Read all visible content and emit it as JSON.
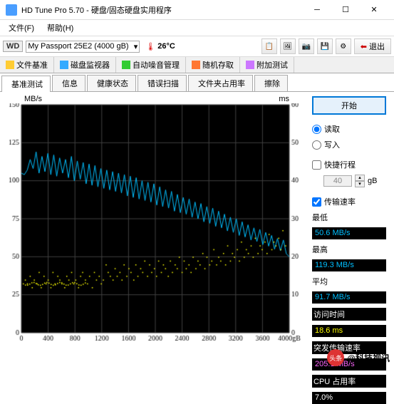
{
  "window": {
    "title": "HD Tune Pro 5.70 - 硬盘/固态硬盘实用程序"
  },
  "menu": {
    "file": "文件(F)",
    "help": "帮助(H)"
  },
  "toolbar": {
    "drive_label": "WD",
    "drive_name": "My Passport 25E2 (4000 gB)",
    "temp": "26°C",
    "exit": "退出"
  },
  "tabs": {
    "r1": [
      "文件基准",
      "磁盘监视器",
      "自动噪音管理",
      "随机存取",
      "附加测试"
    ],
    "r2": [
      "基准测试",
      "信息",
      "健康状态",
      "错误扫描",
      "文件夹占用率",
      "擦除"
    ]
  },
  "chart": {
    "y_label_left": "MB/s",
    "y_label_right": "ms",
    "y_left": [
      150,
      125,
      100,
      75,
      50,
      25,
      0
    ],
    "y_right": [
      60,
      50,
      40,
      30,
      20,
      10,
      0
    ],
    "x_ticks": [
      0,
      400,
      800,
      1200,
      1600,
      2000,
      2400,
      2800,
      3200,
      3600
    ],
    "x_last": "4000gB",
    "bg": "#000000",
    "grid": "#404040",
    "line_color": "#00bfff",
    "dot_color": "#ffff00",
    "transfer": [
      105,
      104,
      107,
      114,
      108,
      119,
      105,
      116,
      106,
      118,
      104,
      117,
      103,
      115,
      105,
      114,
      102,
      116,
      100,
      113,
      101,
      112,
      98,
      111,
      97,
      110,
      96,
      108,
      95,
      107,
      94,
      106,
      93,
      105,
      92,
      104,
      90,
      103,
      89,
      102,
      88,
      100,
      87,
      99,
      86,
      98,
      84,
      96,
      83,
      94,
      82,
      93,
      80,
      91,
      79,
      89,
      78,
      88,
      76,
      86,
      75,
      85,
      73,
      83,
      72,
      82,
      70,
      80,
      69,
      78,
      67,
      76,
      66,
      75,
      64,
      73,
      63,
      71,
      61,
      69,
      60,
      68,
      58,
      66,
      57,
      64,
      55,
      62,
      54,
      61,
      52,
      50
    ],
    "access_x": [
      5,
      8,
      12,
      15,
      18,
      22,
      25,
      28,
      32,
      35,
      38,
      42,
      45,
      48,
      52,
      55,
      58,
      62,
      65,
      68,
      72,
      75,
      78,
      82,
      85,
      88,
      92,
      95,
      98,
      102,
      105,
      108,
      112,
      115,
      118,
      122,
      125,
      128,
      132,
      135,
      138,
      142,
      145,
      148,
      152,
      155,
      158,
      162,
      165,
      168,
      172,
      175,
      178,
      182,
      185,
      188,
      192,
      195,
      198,
      202,
      205,
      208,
      212,
      215,
      218,
      222,
      225,
      228,
      232,
      235,
      238,
      242,
      245,
      248,
      252,
      255,
      258,
      262,
      265,
      268,
      272,
      275,
      278,
      282,
      285,
      288,
      292,
      295,
      298,
      302,
      305,
      308,
      312,
      315,
      318,
      322,
      325,
      328,
      332,
      335,
      338,
      342,
      345,
      348,
      352,
      355,
      358,
      362,
      365,
      368,
      372,
      375,
      378,
      382
    ],
    "access_y": [
      14,
      13,
      15,
      12,
      14,
      13,
      16,
      12,
      15,
      13,
      14,
      12,
      16,
      13,
      15,
      14,
      13,
      12,
      15,
      14,
      16,
      13,
      14,
      12,
      15,
      16,
      14,
      13,
      15,
      12,
      16,
      14,
      15,
      13,
      14,
      18,
      16,
      15,
      14,
      17,
      15,
      16,
      14,
      18,
      15,
      17,
      16,
      14,
      18,
      15,
      17,
      16,
      19,
      15,
      18,
      16,
      17,
      15,
      19,
      16,
      18,
      17,
      15,
      19,
      16,
      18,
      17,
      20,
      16,
      19,
      17,
      18,
      16,
      20,
      17,
      19,
      18,
      21,
      17,
      20,
      18,
      19,
      22,
      18,
      20,
      19,
      21,
      18,
      23,
      19,
      21,
      20,
      22,
      19,
      24,
      20,
      22,
      21,
      23,
      20,
      25,
      21,
      23,
      22,
      24,
      21,
      26,
      22,
      24,
      23,
      25,
      22,
      27,
      23
    ]
  },
  "side": {
    "start": "开始",
    "read": "读取",
    "write": "写入",
    "short": "快捷行程",
    "stride_val": "40",
    "stride_unit": "gB",
    "transfer": "传输速率",
    "min": "最低",
    "min_v": "50.6 MB/s",
    "max": "最高",
    "max_v": "119.3 MB/s",
    "avg": "平均",
    "avg_v": "91.7 MB/s",
    "access": "访问时间",
    "access_v": "18.6 ms",
    "burst": "突发传输速率",
    "burst_v": "205.1 MB/s",
    "cpu": "CPU 占用率",
    "cpu_v": "7.0%"
  },
  "watermark": {
    "logo": "头条",
    "text": "@科技视讯"
  }
}
